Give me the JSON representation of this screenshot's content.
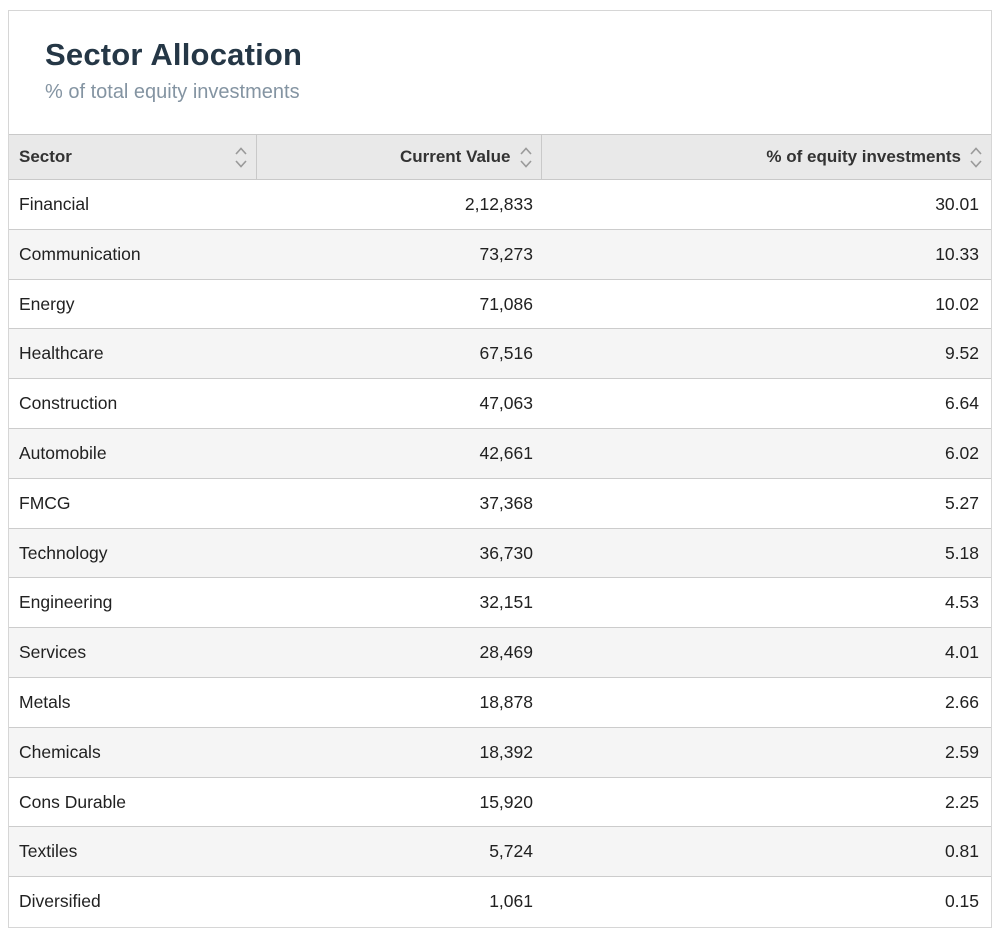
{
  "widget": {
    "title": "Sector Allocation",
    "subtitle": "% of total equity investments"
  },
  "table": {
    "columns": [
      {
        "label": "Sector",
        "align": "left",
        "sortable": true
      },
      {
        "label": "Current Value",
        "align": "right",
        "sortable": true
      },
      {
        "label": "% of equity investments",
        "align": "right",
        "sortable": true
      }
    ],
    "rows": [
      {
        "sector": "Financial",
        "current_value": "2,12,833",
        "pct_of_equity": "30.01"
      },
      {
        "sector": "Communication",
        "current_value": "73,273",
        "pct_of_equity": "10.33"
      },
      {
        "sector": "Energy",
        "current_value": "71,086",
        "pct_of_equity": "10.02"
      },
      {
        "sector": "Healthcare",
        "current_value": "67,516",
        "pct_of_equity": "9.52"
      },
      {
        "sector": "Construction",
        "current_value": "47,063",
        "pct_of_equity": "6.64"
      },
      {
        "sector": "Automobile",
        "current_value": "42,661",
        "pct_of_equity": "6.02"
      },
      {
        "sector": "FMCG",
        "current_value": "37,368",
        "pct_of_equity": "5.27"
      },
      {
        "sector": "Technology",
        "current_value": "36,730",
        "pct_of_equity": "5.18"
      },
      {
        "sector": "Engineering",
        "current_value": "32,151",
        "pct_of_equity": "4.53"
      },
      {
        "sector": "Services",
        "current_value": "28,469",
        "pct_of_equity": "4.01"
      },
      {
        "sector": "Metals",
        "current_value": "18,878",
        "pct_of_equity": "2.66"
      },
      {
        "sector": "Chemicals",
        "current_value": "18,392",
        "pct_of_equity": "2.59"
      },
      {
        "sector": "Cons Durable",
        "current_value": "15,920",
        "pct_of_equity": "2.25"
      },
      {
        "sector": "Textiles",
        "current_value": "5,724",
        "pct_of_equity": "0.81"
      },
      {
        "sector": "Diversified",
        "current_value": "1,061",
        "pct_of_equity": "0.15"
      }
    ]
  },
  "icons": {
    "sort": "sort-chevron-up-down-icon"
  },
  "colors": {
    "title_text": "#253746",
    "subtitle_text": "#8494a2",
    "header_background": "#e9e9e9",
    "header_text": "#333333",
    "row_alt_background": "#f5f5f5",
    "row_text": "#212121",
    "border": "#c9c9c9",
    "sort_icon": "#9a9a9a"
  }
}
